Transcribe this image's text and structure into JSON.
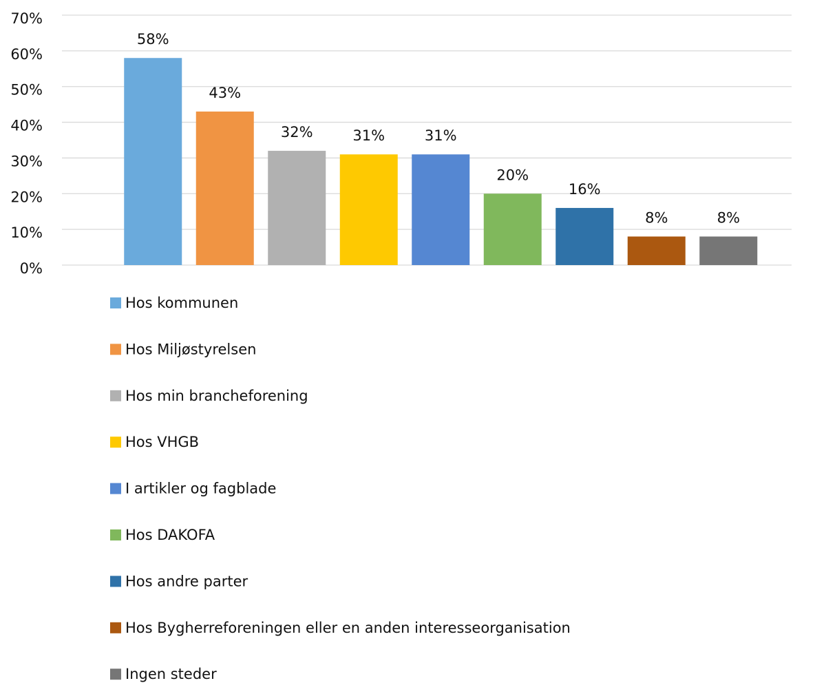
{
  "chart_data": {
    "type": "bar",
    "categories": [
      "Hos kommunen",
      "Hos Miljøstyrelsen",
      "Hos min brancheforening",
      "Hos VHGB",
      "I artikler og fagblade",
      "Hos DAKOFA",
      "Hos andre parter",
      "Hos Bygherreforeningen eller en anden interesseorganisation",
      "Ingen steder"
    ],
    "values": [
      58,
      43,
      32,
      31,
      31,
      20,
      16,
      8,
      8
    ],
    "value_labels": [
      "58%",
      "43%",
      "32%",
      "31%",
      "31%",
      "20%",
      "16%",
      "8%",
      "8%"
    ],
    "colors": [
      "#6aaadc",
      "#f09443",
      "#b1b1b1",
      "#fec901",
      "#5587d2",
      "#80b85c",
      "#2f72a8",
      "#ab5810",
      "#767676"
    ],
    "ylim": [
      0,
      70
    ],
    "yticks": [
      {
        "value": 0,
        "label": "0%"
      },
      {
        "value": 10,
        "label": "10%"
      },
      {
        "value": 20,
        "label": "20%"
      },
      {
        "value": 30,
        "label": "30%"
      },
      {
        "value": 40,
        "label": "40%"
      },
      {
        "value": 50,
        "label": "50%"
      },
      {
        "value": 60,
        "label": "60%"
      },
      {
        "value": 70,
        "label": "70%"
      }
    ],
    "grid": true,
    "legend": "bottom"
  }
}
